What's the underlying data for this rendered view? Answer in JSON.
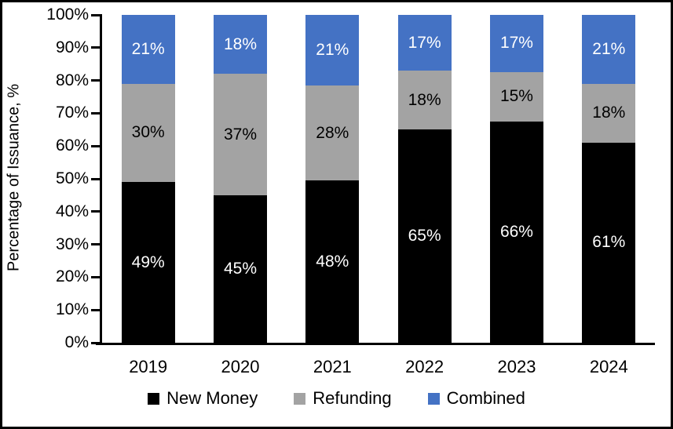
{
  "chart_data": {
    "type": "bar",
    "stacked": true,
    "title": "",
    "ylabel": "Percentage of Issuance, %",
    "xlabel": "",
    "ylim": [
      0,
      100
    ],
    "ytick_step": 10,
    "tick_suffix": "%",
    "value_suffix": "%",
    "grid": false,
    "legend_position": "bottom",
    "categories": [
      "2019",
      "2020",
      "2021",
      "2022",
      "2023",
      "2024"
    ],
    "series": [
      {
        "name": "New Money",
        "color": "#000000",
        "label_color": "#FFFFFF",
        "values": [
          49,
          45,
          48,
          65,
          66,
          61
        ]
      },
      {
        "name": "Refunding",
        "color": "#A3A3A3",
        "label_color": "#000000",
        "values": [
          30,
          37,
          28,
          18,
          15,
          18
        ]
      },
      {
        "name": "Combined",
        "color": "#4472C4",
        "label_color": "#FFFFFF",
        "values": [
          21,
          18,
          21,
          17,
          17,
          21
        ]
      }
    ]
  }
}
